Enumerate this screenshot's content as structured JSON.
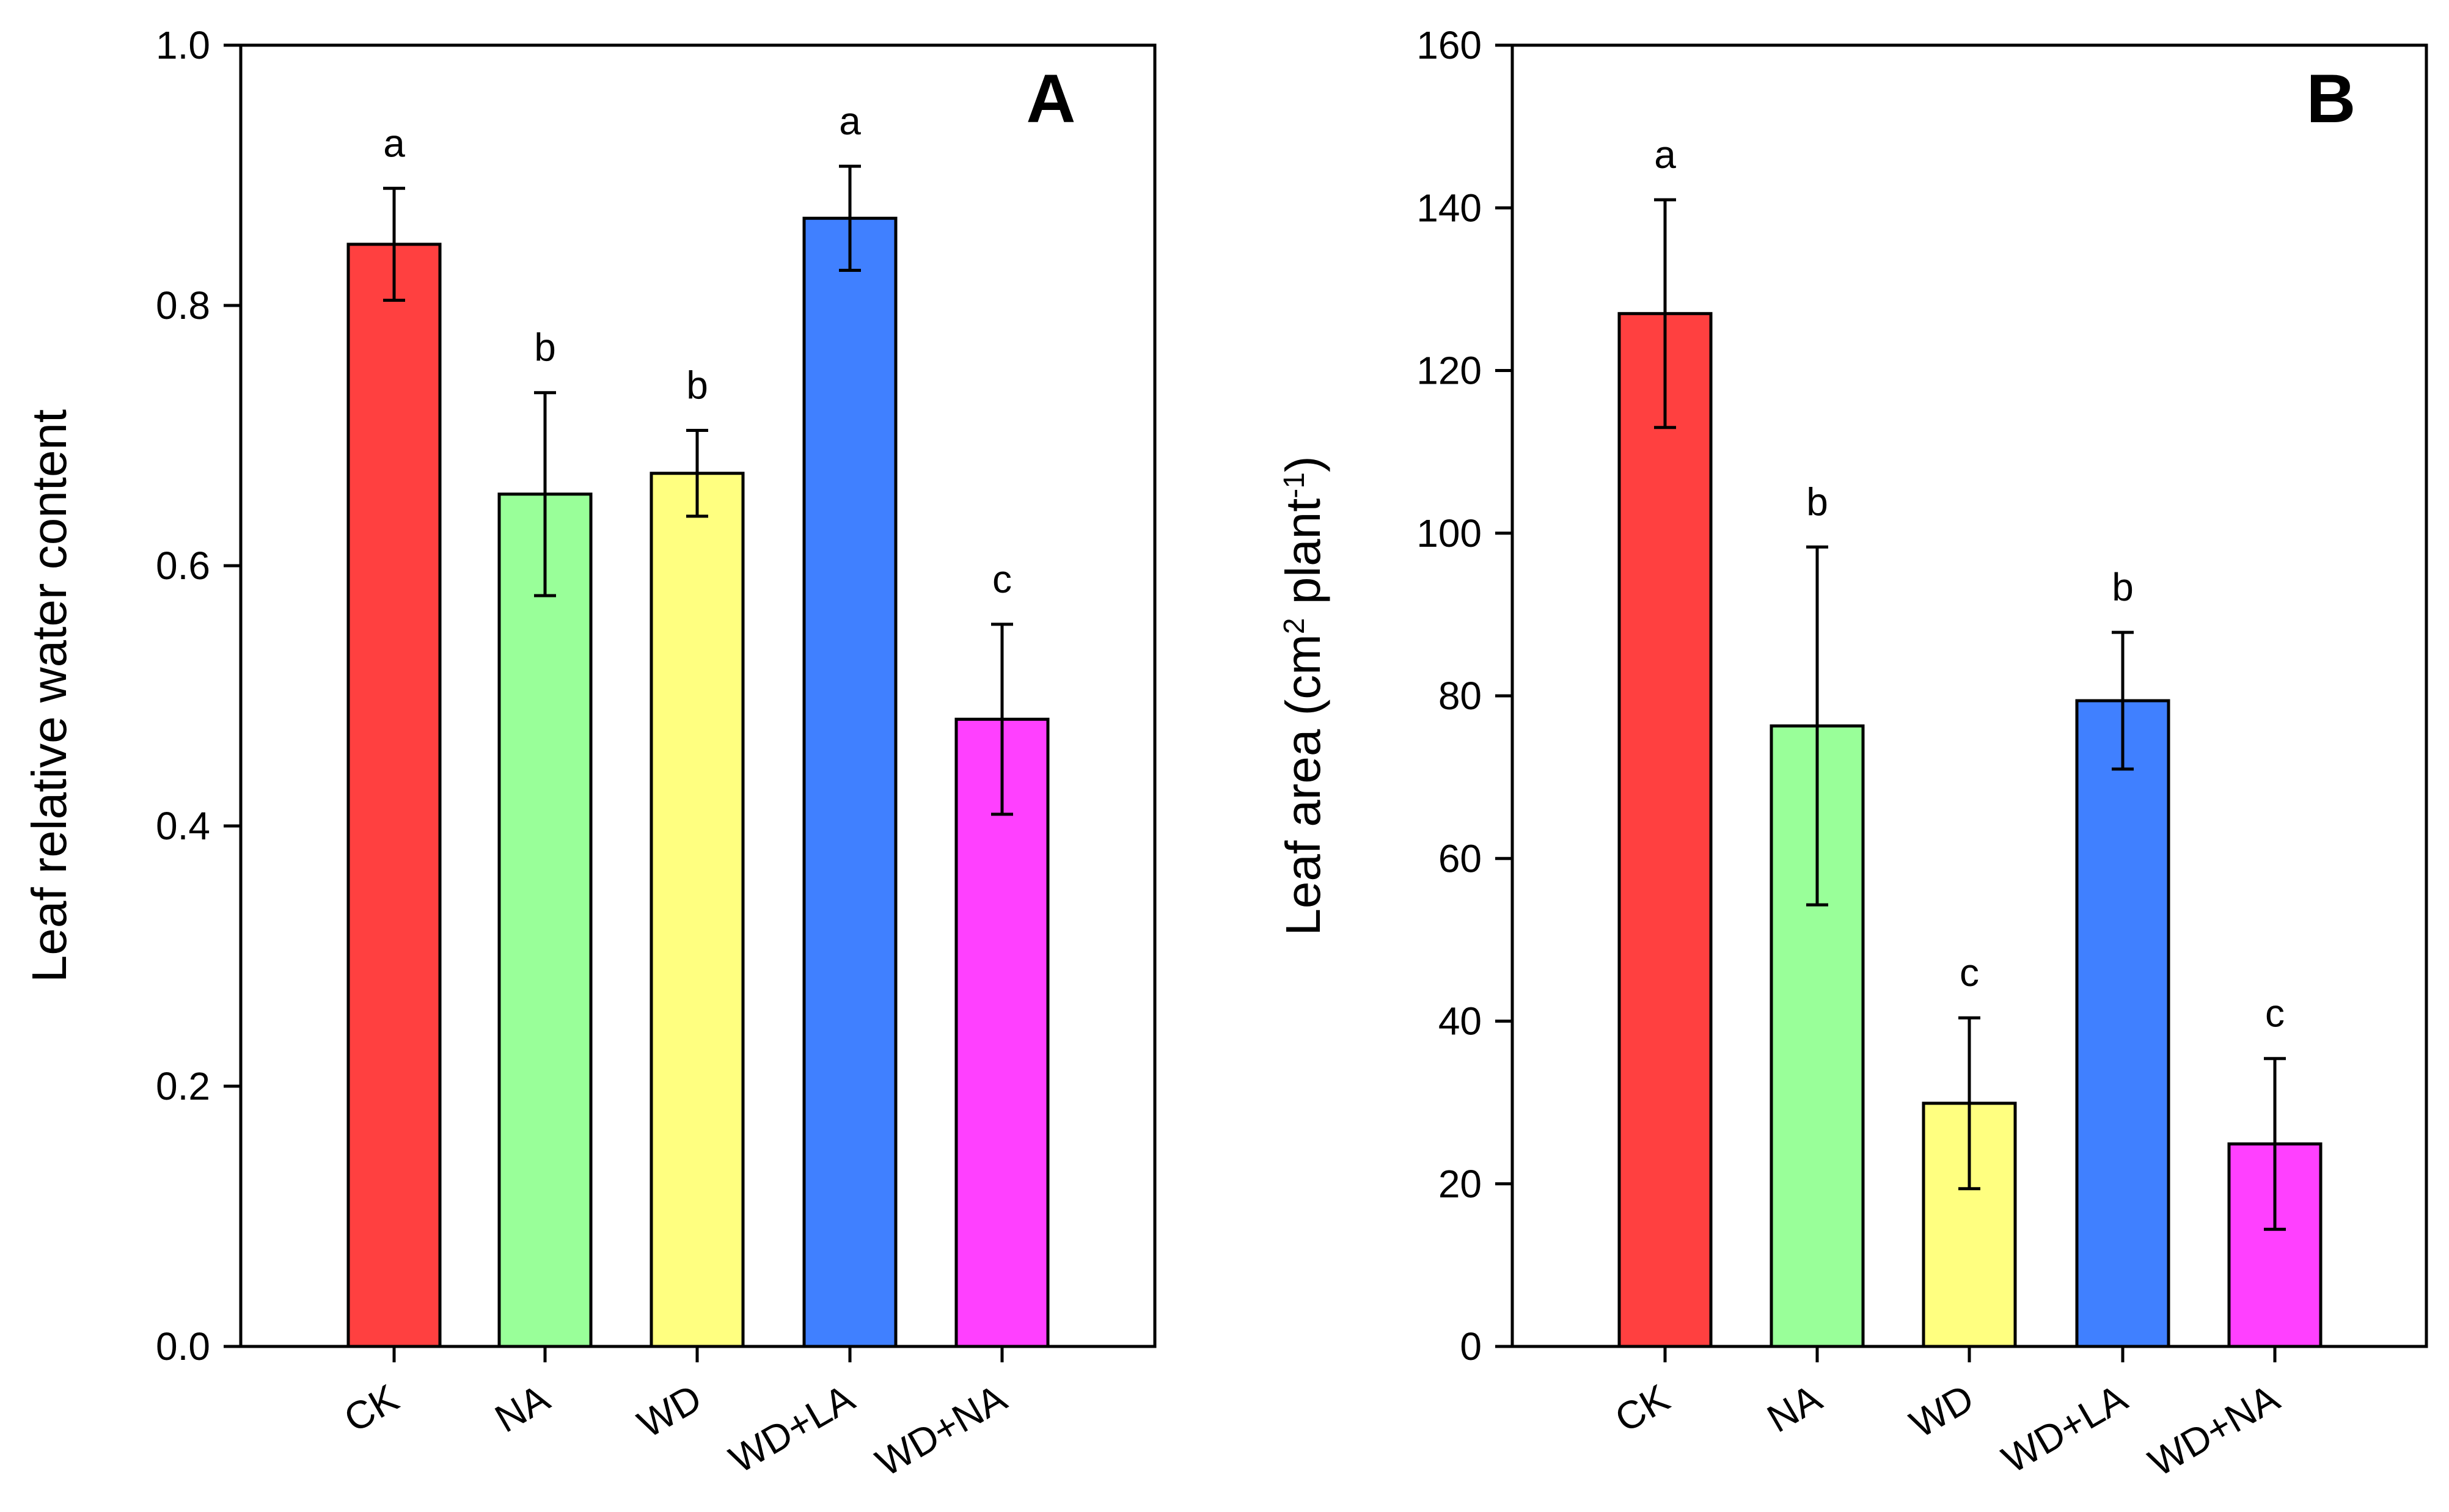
{
  "chart_data": [
    {
      "panel": "A",
      "type": "bar",
      "categories": [
        "CK",
        "NA",
        "WD",
        "WD+LA",
        "WD+NA"
      ],
      "values": [
        0.847,
        0.655,
        0.671,
        0.867,
        0.482
      ],
      "errors": [
        0.043,
        0.078,
        0.033,
        0.04,
        0.073
      ],
      "significance": [
        "a",
        "b",
        "b",
        "a",
        "c"
      ],
      "colors": [
        "#ff4040",
        "#99ff99",
        "#ffff80",
        "#4080ff",
        "#ff40ff"
      ],
      "ylabel": "Leaf relative water content",
      "xlabel": "",
      "ylim": [
        0,
        1.0
      ],
      "yticks": [
        "0.0",
        "0.2",
        "0.4",
        "0.6",
        "0.8",
        "1.0"
      ]
    },
    {
      "panel": "B",
      "type": "bar",
      "categories": [
        "CK",
        "NA",
        "WD",
        "WD+LA",
        "WD+NA"
      ],
      "values": [
        127,
        76.3,
        29.9,
        79.4,
        24.9
      ],
      "errors": [
        14,
        22,
        10.5,
        8.4,
        10.5
      ],
      "significance": [
        "a",
        "b",
        "c",
        "b",
        "c"
      ],
      "colors": [
        "#ff4040",
        "#99ff99",
        "#ffff80",
        "#4080ff",
        "#ff40ff"
      ],
      "ylabel": {
        "prefix": "Leaf area (cm",
        "sup1": "2",
        "middle": " plant",
        "sup2": "-1",
        "suffix": ")"
      },
      "xlabel": "",
      "ylim": [
        0,
        160
      ],
      "yticks": [
        "0",
        "20",
        "40",
        "60",
        "80",
        "100",
        "120",
        "140",
        "160"
      ]
    }
  ]
}
